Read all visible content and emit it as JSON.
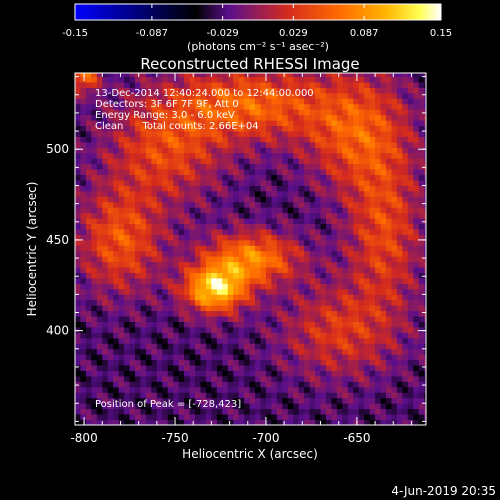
{
  "chart_data": {
    "type": "heatmap",
    "title": "Reconstructed RHESSI Image",
    "xlabel": "Heliocentric X (arcsec)",
    "ylabel": "Heliocentric Y (arcsec)",
    "xlim": [
      -805,
      -612
    ],
    "ylim": [
      348,
      542
    ],
    "x_ticks": [
      -800,
      -750,
      -700,
      -650
    ],
    "x_tick_labels": [
      "-800",
      "-750",
      "-700",
      "-650"
    ],
    "y_ticks": [
      400,
      450,
      500
    ],
    "y_tick_labels": [
      "400",
      "450",
      "500"
    ],
    "colorbar": {
      "min": -0.15,
      "max": 0.15,
      "tick_values": [
        -0.15,
        -0.087,
        -0.029,
        0.029,
        0.087,
        0.15
      ],
      "tick_labels": [
        "-0.15",
        "-0.087",
        "-0.029",
        "0.029",
        "0.087",
        "0.15"
      ],
      "label": "(photons cm⁻² s⁻¹ asec⁻²)",
      "colors": [
        "#0000ff",
        "#000000",
        "#5a0f8c",
        "#d42a1e",
        "#ff6a00",
        "#ffb400",
        "#ffff50",
        "#ffffff"
      ]
    },
    "annotations": [
      "13-Dec-2014 12:40:24.000 to 12:44:00.000",
      "Detectors: 3F 6F 7F 9F, Att 0",
      "Energy Range: 3.0 - 6.0 keV",
      "Clean      Total counts: 2.66E+04"
    ],
    "peak_label": "Position of Peak = [-728,423]",
    "peak": {
      "x": -728,
      "y": 423,
      "value": 0.15
    },
    "sources": [
      {
        "name": "main-bright-kernel",
        "x": -728,
        "y": 423,
        "amp": 0.15,
        "sx": 12,
        "sy": 9
      },
      {
        "name": "secondary-kernel",
        "x": -708,
        "y": 440,
        "amp": 0.11,
        "sx": 18,
        "sy": 10
      },
      {
        "name": "arc-left",
        "x": -780,
        "y": 450,
        "amp": 0.08,
        "sx": 16,
        "sy": 20
      },
      {
        "name": "arc-top-left",
        "x": -755,
        "y": 500,
        "amp": 0.07,
        "sx": 22,
        "sy": 20
      },
      {
        "name": "arc-top",
        "x": -710,
        "y": 525,
        "amp": 0.09,
        "sx": 30,
        "sy": 14
      },
      {
        "name": "arc-top-right",
        "x": -650,
        "y": 510,
        "amp": 0.08,
        "sx": 20,
        "sy": 22
      },
      {
        "name": "arc-right",
        "x": -635,
        "y": 455,
        "amp": 0.07,
        "sx": 14,
        "sy": 30
      },
      {
        "name": "lower-right",
        "x": -660,
        "y": 400,
        "amp": 0.06,
        "sx": 22,
        "sy": 18
      },
      {
        "name": "top-left-corner",
        "x": -800,
        "y": 540,
        "amp": 0.09,
        "sx": 6,
        "sy": 6
      }
    ]
  },
  "footer_date": "4-Jun-2019 20:35"
}
